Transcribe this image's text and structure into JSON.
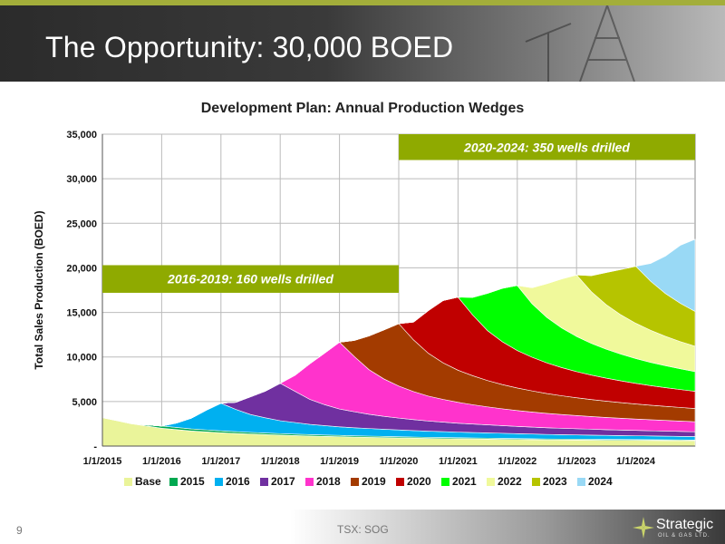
{
  "header": {
    "title": "The Opportunity: 30,000 BOED"
  },
  "footer": {
    "page_number": "9",
    "ticker": "TSX: SOG",
    "logo_name": "Strategic",
    "logo_sub": "OIL & GAS LTD."
  },
  "colors": {
    "header_accent": "#a3ae3a",
    "annotation_fill": "#8faa00",
    "Base": "#eaf49a",
    "2015": "#00a850",
    "2016": "#00b0f0",
    "2017": "#7030a0",
    "2018": "#ff33cc",
    "2019": "#a33b00",
    "2020": "#c00000",
    "2021": "#00ff00",
    "2022": "#f0f99b",
    "2023": "#b6c400",
    "2024": "#99d9f5"
  },
  "chart_data": {
    "type": "area",
    "stacked": true,
    "title": "Development Plan: Annual Production Wedges",
    "ylabel": "Total Sales Production (BOED)",
    "xlabel": "",
    "ylim": [
      0,
      35000
    ],
    "y_ticks": [
      "-",
      "5,000",
      "10,000",
      "15,000",
      "20,000",
      "25,000",
      "30,000",
      "35,000"
    ],
    "x_ticks": [
      "1/1/2015",
      "1/1/2016",
      "1/1/2017",
      "1/1/2018",
      "1/1/2019",
      "1/1/2020",
      "1/1/2021",
      "1/1/2022",
      "1/1/2023",
      "1/1/2024"
    ],
    "grid": true,
    "legend": "bottom",
    "x": [
      2015.0,
      2015.5,
      2016.0,
      2016.25,
      2016.5,
      2016.75,
      2017.0,
      2017.25,
      2017.5,
      2017.75,
      2018.0,
      2018.25,
      2018.5,
      2018.75,
      2019.0,
      2019.25,
      2019.5,
      2019.75,
      2020.0,
      2020.25,
      2020.5,
      2020.75,
      2021.0,
      2021.25,
      2021.5,
      2021.75,
      2022.0,
      2022.25,
      2022.5,
      2022.75,
      2023.0,
      2023.25,
      2023.5,
      2023.75,
      2024.0,
      2024.25,
      2024.5,
      2024.75,
      2025.0
    ],
    "series": [
      {
        "name": "Base",
        "values": [
          3200,
          2500,
          2000,
          1850,
          1700,
          1600,
          1500,
          1420,
          1350,
          1290,
          1230,
          1180,
          1130,
          1090,
          1050,
          1010,
          980,
          950,
          920,
          890,
          860,
          840,
          820,
          800,
          780,
          760,
          740,
          720,
          700,
          690,
          680,
          670,
          660,
          650,
          640,
          630,
          620,
          610,
          600
        ]
      },
      {
        "name": "2015",
        "values": [
          0,
          0,
          250,
          240,
          230,
          220,
          210,
          200,
          190,
          180,
          170,
          165,
          160,
          155,
          150,
          145,
          140,
          135,
          130,
          125,
          120,
          118,
          115,
          112,
          110,
          108,
          105,
          102,
          100,
          98,
          96,
          94,
          92,
          90,
          88,
          86,
          84,
          82,
          80
        ]
      },
      {
        "name": "2016",
        "values": [
          0,
          0,
          0,
          500,
          1200,
          2200,
          3100,
          2500,
          2000,
          1700,
          1450,
          1300,
          1150,
          1050,
          960,
          900,
          850,
          800,
          760,
          720,
          690,
          660,
          630,
          610,
          590,
          570,
          550,
          530,
          510,
          495,
          480,
          465,
          450,
          440,
          430,
          420,
          410,
          400,
          390
        ]
      },
      {
        "name": "2017",
        "values": [
          0,
          0,
          0,
          0,
          0,
          0,
          0,
          800,
          2000,
          3000,
          4200,
          3500,
          2800,
          2350,
          2000,
          1800,
          1600,
          1450,
          1330,
          1230,
          1140,
          1070,
          1000,
          950,
          900,
          855,
          815,
          780,
          745,
          715,
          690,
          665,
          640,
          620,
          600,
          580,
          565,
          550,
          535
        ]
      },
      {
        "name": "2018",
        "values": [
          0,
          0,
          0,
          0,
          0,
          0,
          0,
          0,
          0,
          0,
          0,
          1800,
          4000,
          5800,
          7500,
          6200,
          5000,
          4200,
          3600,
          3150,
          2800,
          2550,
          2350,
          2170,
          2020,
          1890,
          1780,
          1690,
          1610,
          1540,
          1480,
          1420,
          1370,
          1320,
          1280,
          1240,
          1200,
          1165,
          1130
        ]
      },
      {
        "name": "2019",
        "values": [
          0,
          0,
          0,
          0,
          0,
          0,
          0,
          0,
          0,
          0,
          0,
          0,
          0,
          0,
          0,
          1800,
          3800,
          5500,
          7000,
          5800,
          4800,
          4100,
          3600,
          3250,
          2950,
          2720,
          2530,
          2370,
          2230,
          2110,
          2000,
          1910,
          1830,
          1760,
          1690,
          1630,
          1580,
          1530,
          1480
        ]
      },
      {
        "name": "2020",
        "values": [
          0,
          0,
          0,
          0,
          0,
          0,
          0,
          0,
          0,
          0,
          0,
          0,
          0,
          0,
          0,
          0,
          0,
          0,
          0,
          2000,
          4800,
          7000,
          8200,
          6800,
          5600,
          4800,
          4200,
          3780,
          3440,
          3160,
          2930,
          2740,
          2580,
          2440,
          2310,
          2200,
          2100,
          2010,
          1930
        ]
      },
      {
        "name": "2021",
        "values": [
          0,
          0,
          0,
          0,
          0,
          0,
          0,
          0,
          0,
          0,
          0,
          0,
          0,
          0,
          0,
          0,
          0,
          0,
          0,
          0,
          0,
          0,
          0,
          2000,
          4200,
          6000,
          7300,
          6000,
          5100,
          4450,
          3950,
          3560,
          3250,
          3000,
          2790,
          2610,
          2460,
          2330,
          2210
        ]
      },
      {
        "name": "2022",
        "values": [
          0,
          0,
          0,
          0,
          0,
          0,
          0,
          0,
          0,
          0,
          0,
          0,
          0,
          0,
          0,
          0,
          0,
          0,
          0,
          0,
          0,
          0,
          0,
          0,
          0,
          0,
          0,
          1800,
          3800,
          5500,
          6900,
          5800,
          5000,
          4400,
          3950,
          3600,
          3300,
          3050,
          2850
        ]
      },
      {
        "name": "2023",
        "values": [
          0,
          0,
          0,
          0,
          0,
          0,
          0,
          0,
          0,
          0,
          0,
          0,
          0,
          0,
          0,
          0,
          0,
          0,
          0,
          0,
          0,
          0,
          0,
          0,
          0,
          0,
          0,
          0,
          0,
          0,
          0,
          1800,
          3600,
          5100,
          6400,
          5500,
          4800,
          4300,
          3900
        ]
      },
      {
        "name": "2024",
        "values": [
          0,
          0,
          0,
          0,
          0,
          0,
          0,
          0,
          0,
          0,
          0,
          0,
          0,
          0,
          0,
          0,
          0,
          0,
          0,
          0,
          0,
          0,
          0,
          0,
          0,
          0,
          0,
          0,
          0,
          0,
          0,
          0,
          0,
          0,
          0,
          2000,
          4200,
          6500,
          8100
        ]
      }
    ],
    "annotations": [
      {
        "text": "2016-2019:  160 wells drilled",
        "x_start": 2015.0,
        "x_end": 2020.0,
        "y_low": 17200,
        "y_high": 20300
      },
      {
        "text": "2020-2024:  350 wells drilled",
        "x_start": 2020.0,
        "x_end": 2025.0,
        "y_low": 32100,
        "y_high": 35000
      }
    ]
  }
}
